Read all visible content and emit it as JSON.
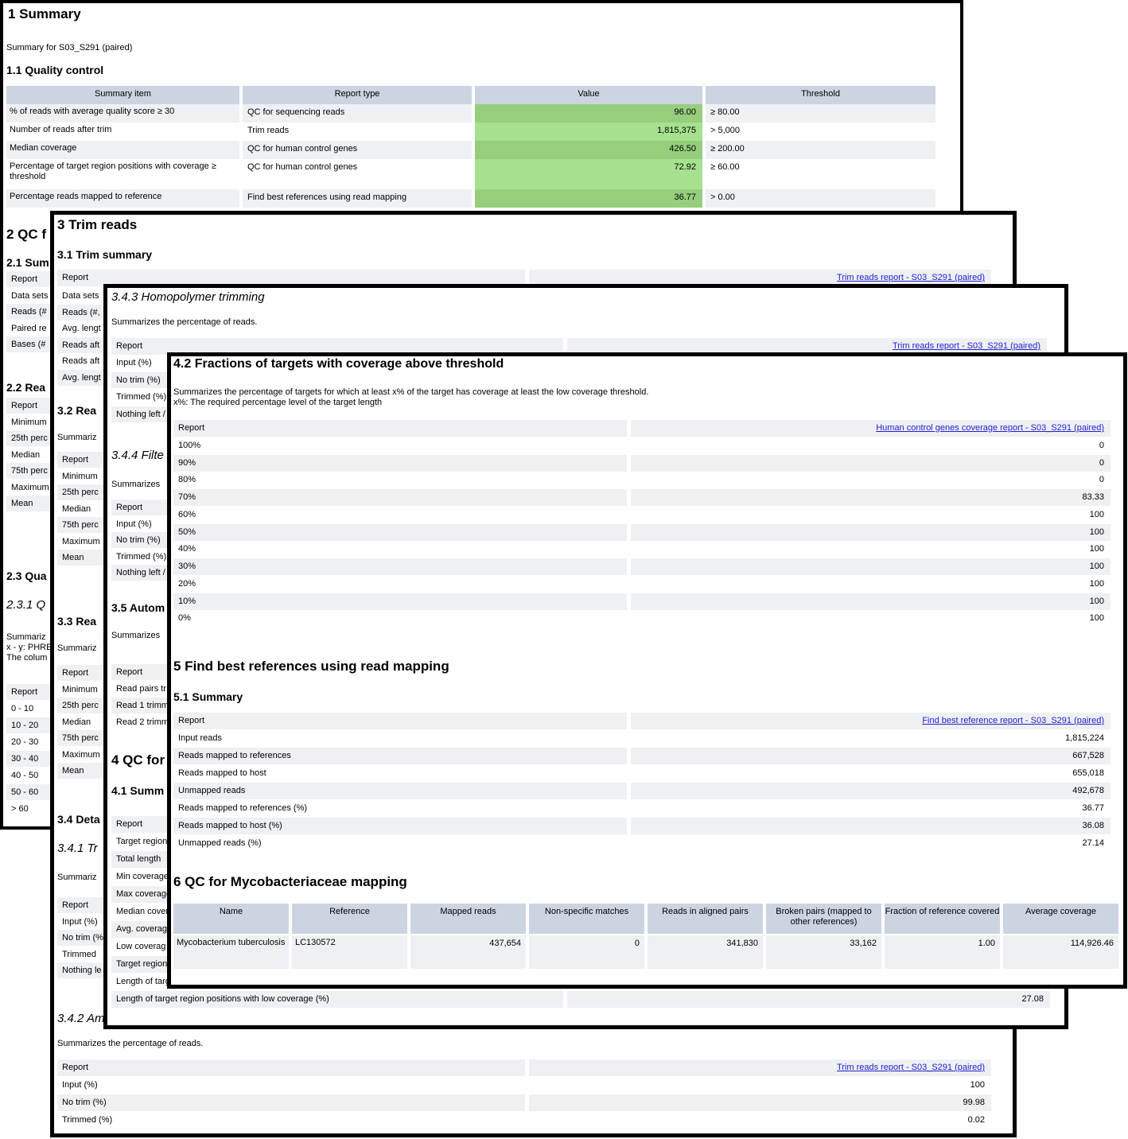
{
  "colors": {
    "green_dark": "#96ce7d",
    "green_light": "#a6e18f",
    "link_blue": "#2222cc",
    "header_bg": "#cdd4e1",
    "stripe_bg": "#eef0f4",
    "border": "#000000"
  },
  "summary_panel": {
    "heading": "1 Summary",
    "subtitle": "Summary for S03_S291 (paired)",
    "qc_heading": "1.1 Quality control",
    "table": {
      "headers": [
        "Summary item",
        "Report type",
        "Value",
        "Threshold"
      ],
      "rows": [
        {
          "item": "% of reads with average quality score ≥ 30",
          "report_type": "QC for sequencing reads",
          "value": "96.00",
          "threshold": "≥ 80.00"
        },
        {
          "item": "Number of reads after trim",
          "report_type": "Trim reads",
          "value": "1,815,375",
          "threshold": "> 5,000"
        },
        {
          "item": "Median coverage",
          "report_type": "QC for human control genes",
          "value": "426.50",
          "threshold": "≥ 200.00"
        },
        {
          "item": "Percentage of target region positions with coverage ≥ threshold",
          "report_type": "QC for human control genes",
          "value": "72.92",
          "threshold": "≥ 60.00"
        },
        {
          "item": "Percentage reads mapped to reference",
          "report_type": "Find best references using read mapping",
          "value": "36.77",
          "threshold": "> 0.00"
        }
      ]
    },
    "clipped": {
      "section2_heading": "2 QC f",
      "s21_heading": "2.1 Sum",
      "s21_rows": [
        "Report",
        "Data sets",
        "Reads (#",
        "Paired re",
        "Bases (#"
      ],
      "s22_heading": "2.2 Rea",
      "s22_rows": [
        "Report",
        "Minimum",
        "25th perc",
        "Median",
        "75th perc",
        "Maximum",
        "Mean"
      ],
      "s23_heading": "2.3 Qua",
      "s231_heading": "2.3.1 Q",
      "s231_desc_lines": [
        "Summariz",
        "x - y: PHRE",
        "The colum"
      ],
      "s231_rows": [
        "Report",
        "0 - 10",
        "10 - 20",
        "20 - 30",
        "30 - 40",
        "40 - 50",
        "50 - 60",
        "> 60"
      ]
    }
  },
  "trim_panel": {
    "heading": "3 Trim reads",
    "s31": {
      "heading": "3.1 Trim summary",
      "report_rows": [
        {
          "label": "Report",
          "value": "Trim reads report - S03_S291 (paired)",
          "link": true
        }
      ],
      "rows": [
        "Data sets",
        "Reads (#,",
        "Avg. lengt",
        "Reads aft",
        "Reads aft",
        "Avg. lengt"
      ]
    },
    "s32": {
      "heading": "3.2 Rea",
      "desc": "Summariz",
      "rows": [
        "Report",
        "Minimum",
        "25th perc",
        "Median",
        "75th perc",
        "Maximum",
        "Mean"
      ]
    },
    "s33": {
      "heading": "3.3 Rea",
      "desc": "Summariz",
      "rows": [
        "Report",
        "Minimum",
        "25th perc",
        "Median",
        "75th perc",
        "Maximum",
        "Mean"
      ]
    },
    "s34_heading": "3.4 Deta",
    "s341": {
      "heading": "3.4.1 Tr",
      "desc": "Summariz",
      "rows": [
        "Report",
        "Input (%)",
        "No trim (%",
        "Trimmed",
        "Nothing le"
      ]
    },
    "s342": {
      "heading": "3.4.2 Am",
      "desc": "Summarizes the percentage of reads.",
      "rows": [
        {
          "label": "Report",
          "value": "Trim reads report - S03_S291 (paired)",
          "link": true
        },
        {
          "label": "Input (%)",
          "value": "100"
        },
        {
          "label": "No trim (%)",
          "value": "99.98"
        },
        {
          "label": "Trimmed (%)",
          "value": "0.02"
        }
      ]
    }
  },
  "homopolymer_panel": {
    "s343": {
      "heading": "3.4.3 Homopolymer trimming",
      "desc": "Summarizes the percentage of reads.",
      "report_rows": [
        {
          "label": "Report",
          "value": "Trim reads report - S03_S291 (paired)",
          "link": true
        }
      ],
      "rows": [
        "Input (%)",
        "No trim (%)",
        "Trimmed (%)",
        "Nothing left /"
      ]
    },
    "s344": {
      "heading": "3.4.4 Filte",
      "desc": "Summarizes",
      "rows": [
        "Report",
        "Input (%)",
        "No trim (%)",
        "Trimmed (%)",
        "Nothing left /"
      ]
    },
    "s35": {
      "heading": "3.5 Autom",
      "desc": "Summarizes",
      "rows": [
        "Report",
        "Read pairs tr",
        "Read 1 trimm",
        "Read 2 trimm"
      ]
    },
    "s4_heading": "4 QC for",
    "s41": {
      "heading": "4.1 Summ",
      "rows": [
        "Report",
        "Target region",
        "Total length",
        "Min coverage",
        "Max coverage",
        "Median cover",
        "Avg. coverage",
        "Low coverag",
        "Target region",
        "Length of targ"
      ],
      "low_row": [
        {
          "label": "Length of target region positions with low coverage (%)",
          "value": "27.08"
        }
      ]
    }
  },
  "fractions_panel": {
    "s42": {
      "heading": "4.2 Fractions of targets with coverage above threshold",
      "desc1": "Summarizes the percentage of targets for which at least x% of the target has coverage at least the low coverage threshold.",
      "desc2": "x%: The required percentage level of the target length",
      "rows": [
        {
          "label": "Report",
          "value": "Human control genes coverage report - S03_S291 (paired)",
          "link": true
        },
        {
          "label": "100%",
          "value": "0"
        },
        {
          "label": "90%",
          "value": "0"
        },
        {
          "label": "80%",
          "value": "0"
        },
        {
          "label": "70%",
          "value": "83.33"
        },
        {
          "label": "60%",
          "value": "100"
        },
        {
          "label": "50%",
          "value": "100"
        },
        {
          "label": "40%",
          "value": "100"
        },
        {
          "label": "30%",
          "value": "100"
        },
        {
          "label": "20%",
          "value": "100"
        },
        {
          "label": "10%",
          "value": "100"
        },
        {
          "label": "0%",
          "value": "100"
        }
      ]
    },
    "s5_heading": "5 Find best references using read mapping",
    "s51": {
      "heading": "5.1 Summary",
      "rows": [
        {
          "label": "Report",
          "value": "Find best reference report - S03_S291 (paired)",
          "link": true
        },
        {
          "label": "Input reads",
          "value": "1,815,224"
        },
        {
          "label": "Reads mapped to references",
          "value": "667,528"
        },
        {
          "label": "Reads mapped to host",
          "value": "655,018"
        },
        {
          "label": "Unmapped reads",
          "value": "492,678"
        },
        {
          "label": "Reads mapped to references (%)",
          "value": "36.77"
        },
        {
          "label": "Reads mapped to host (%)",
          "value": "36.08"
        },
        {
          "label": "Unmapped reads (%)",
          "value": "27.14"
        }
      ]
    },
    "s6": {
      "heading": "6 QC for Mycobacteriaceae mapping",
      "headers": [
        "Name",
        "Reference",
        "Mapped reads",
        "Non-specific matches",
        "Reads in aligned pairs",
        "Broken pairs (mapped to other references)",
        "Fraction of reference covered",
        "Average coverage"
      ],
      "row": [
        "Mycobacterium tuberculosis",
        "LC130572",
        "437,654",
        "0",
        "341,830",
        "33,162",
        "1.00",
        "114,926.46"
      ]
    }
  }
}
